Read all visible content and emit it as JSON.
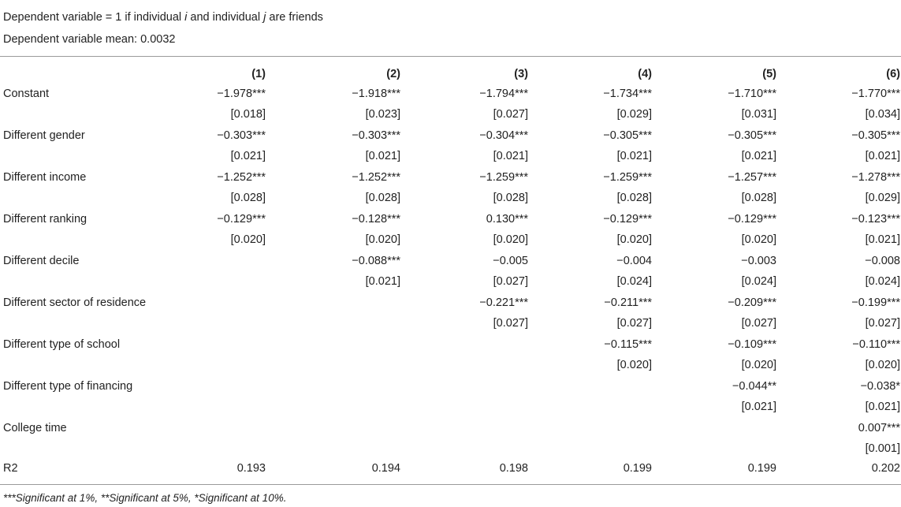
{
  "header": {
    "line1_prefix": "Dependent variable = 1 if individual ",
    "line1_i": "i",
    "line1_mid": " and individual ",
    "line1_j": "j",
    "line1_suffix": " are friends",
    "line2": "Dependent variable mean: 0.0032"
  },
  "columns": [
    "(1)",
    "(2)",
    "(3)",
    "(4)",
    "(5)",
    "(6)"
  ],
  "rows": [
    {
      "label": "Constant",
      "coef": [
        "−1.978***",
        "−1.918***",
        "−1.794***",
        "−1.734***",
        "−1.710***",
        "−1.770***"
      ],
      "se": [
        "[0.018]",
        "[0.023]",
        "[0.027]",
        "[0.029]",
        "[0.031]",
        "[0.034]"
      ]
    },
    {
      "label": "Different gender",
      "coef": [
        "−0.303***",
        "−0.303***",
        "−0.304***",
        "−0.305***",
        "−0.305***",
        "−0.305***"
      ],
      "se": [
        "[0.021]",
        "[0.021]",
        "[0.021]",
        "[0.021]",
        "[0.021]",
        "[0.021]"
      ]
    },
    {
      "label": "Different income",
      "coef": [
        "−1.252***",
        "−1.252***",
        "−1.259***",
        "−1.259***",
        "−1.257***",
        "−1.278***"
      ],
      "se": [
        "[0.028]",
        "[0.028]",
        "[0.028]",
        "[0.028]",
        "[0.028]",
        "[0.029]"
      ]
    },
    {
      "label": "Different ranking",
      "coef": [
        "−0.129***",
        "−0.128***",
        "0.130***",
        "−0.129***",
        "−0.129***",
        "−0.123***"
      ],
      "se": [
        "[0.020]",
        "[0.020]",
        "[0.020]",
        "[0.020]",
        "[0.020]",
        "[0.021]"
      ]
    },
    {
      "label": "Different decile",
      "coef": [
        "",
        "−0.088***",
        "−0.005",
        "−0.004",
        "−0.003",
        "−0.008"
      ],
      "se": [
        "",
        "[0.021]",
        "[0.027]",
        "[0.024]",
        "[0.024]",
        "[0.024]"
      ]
    },
    {
      "label": "Different sector of residence",
      "coef": [
        "",
        "",
        "−0.221***",
        "−0.211***",
        "−0.209***",
        "−0.199***"
      ],
      "se": [
        "",
        "",
        "[0.027]",
        "[0.027]",
        "[0.027]",
        "[0.027]"
      ]
    },
    {
      "label": "Different type of school",
      "coef": [
        "",
        "",
        "",
        "−0.115***",
        "−0.109***",
        "−0.110***"
      ],
      "se": [
        "",
        "",
        "",
        "[0.020]",
        "[0.020]",
        "[0.020]"
      ]
    },
    {
      "label": "Different type of financing",
      "coef": [
        "",
        "",
        "",
        "",
        "−0.044**",
        "−0.038*"
      ],
      "se": [
        "",
        "",
        "",
        "",
        "[0.021]",
        "[0.021]"
      ]
    },
    {
      "label": "College time",
      "coef": [
        "",
        "",
        "",
        "",
        "",
        "0.007***"
      ],
      "se": [
        "",
        "",
        "",
        "",
        "",
        "[0.001]"
      ]
    }
  ],
  "r2": {
    "label": "R2",
    "values": [
      "0.193",
      "0.194",
      "0.198",
      "0.199",
      "0.199",
      "0.202"
    ]
  },
  "footnote": "***Significant at 1%, **Significant at 5%, *Significant at 10%."
}
